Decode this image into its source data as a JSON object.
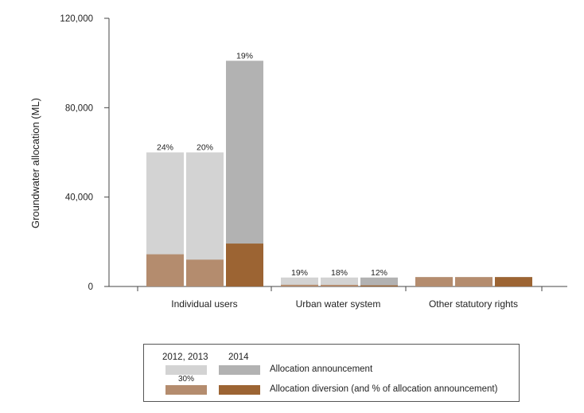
{
  "chart_data": {
    "type": "bar",
    "ylabel": "Groundwater allocation (ML)",
    "ylim": [
      0,
      120000
    ],
    "yticks": [
      "0",
      "40,000",
      "80,000",
      "120,000"
    ],
    "categories": [
      "Individual users",
      "Urban water system",
      "Other statutory rights"
    ],
    "bars": [
      {
        "category": "Individual users",
        "year": "2012",
        "announcement": 60000,
        "diversion": 14400,
        "pct_label": "24%"
      },
      {
        "category": "Individual users",
        "year": "2013",
        "announcement": 60000,
        "diversion": 12000,
        "pct_label": "20%"
      },
      {
        "category": "Individual users",
        "year": "2014",
        "announcement": 101000,
        "diversion": 19200,
        "pct_label": "19%"
      },
      {
        "category": "Urban water system",
        "year": "2012",
        "announcement": 4000,
        "diversion": 760,
        "pct_label": "19%"
      },
      {
        "category": "Urban water system",
        "year": "2013",
        "announcement": 4000,
        "diversion": 720,
        "pct_label": "18%"
      },
      {
        "category": "Urban water system",
        "year": "2014",
        "announcement": 4000,
        "diversion": 480,
        "pct_label": "12%"
      },
      {
        "category": "Other statutory rights",
        "year": "2012",
        "announcement": 4200,
        "diversion": 4200,
        "pct_label": ""
      },
      {
        "category": "Other statutory rights",
        "year": "2013",
        "announcement": 4200,
        "diversion": 4200,
        "pct_label": ""
      },
      {
        "category": "Other statutory rights",
        "year": "2014",
        "announcement": 4200,
        "diversion": 4200,
        "pct_label": ""
      }
    ],
    "colors": {
      "announcement_2012_2013": "#d3d3d3",
      "announcement_2014": "#b2b2b2",
      "diversion_2012_2013": "#b48c6e",
      "diversion_2014": "#9c6433"
    },
    "legend": {
      "header_left": "2012, 2013",
      "header_right": "2014",
      "announcement_label": "Allocation announcement",
      "diversion_label": "Allocation diversion (and % of allocation announcement)",
      "example_pct": "30%",
      "placement": "bottom"
    }
  }
}
